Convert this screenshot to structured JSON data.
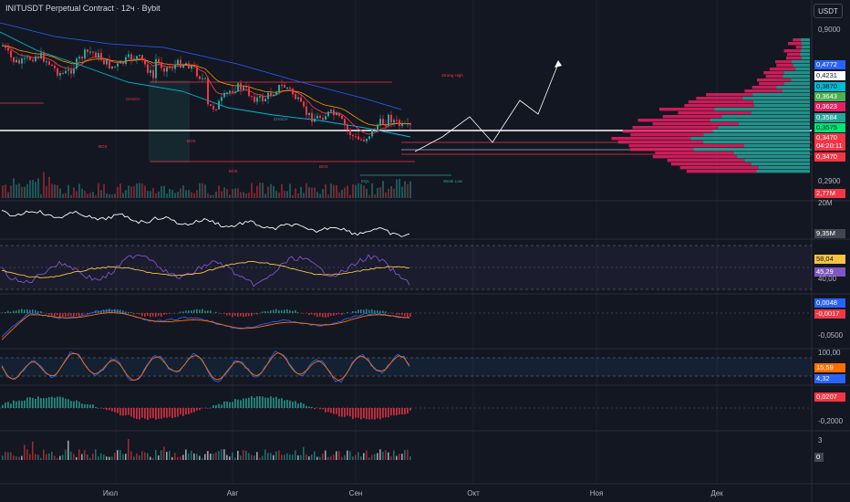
{
  "header": {
    "title": "INITUSDT Perpetual Contract · 12ч · Bybit",
    "currency_button": "USDT"
  },
  "price_axis": {
    "top": "0,9000",
    "bottom": "0,2900"
  },
  "price_badges": [
    {
      "text": "0,4772",
      "bg": "#2962ff",
      "fg": "#ffffff"
    },
    {
      "text": "0,4231",
      "bg": "#ffffff",
      "fg": "#131722"
    },
    {
      "text": "0,3870",
      "bg": "#00bcd4",
      "fg": "#131722"
    },
    {
      "text": "0,3643",
      "bg": "#4caf50",
      "fg": "#ffffff"
    },
    {
      "text": "0,3623",
      "bg": "#e91e63",
      "fg": "#ffffff"
    },
    {
      "text": "0,3584",
      "bg": "#26a69a",
      "fg": "#ffffff"
    },
    {
      "text": "0,3575",
      "bg": "#00e676",
      "fg": "#131722"
    },
    {
      "text": "0,3470",
      "bg": "#f23645",
      "fg": "#ffffff"
    },
    {
      "text": "04:20:11",
      "bg": "#f23645",
      "fg": "#ffffff"
    },
    {
      "text": "0,3470",
      "bg": "#f23645",
      "fg": "#ffffff"
    }
  ],
  "volume": {
    "badge": "2,77M",
    "scale": "20M"
  },
  "indicator_a": {
    "badge": "9,35M"
  },
  "rsi": {
    "badge1": "58,04",
    "badge2": "45,29",
    "level": "40,00"
  },
  "macd": {
    "badge1": "0,0048",
    "badge2": "-0,0017",
    "level": "-0,0500"
  },
  "stoch": {
    "top": "100,00",
    "badge1": "15,59",
    "badge2": "4,32"
  },
  "histogram": {
    "badge": "0,0207",
    "level": "-0,2000"
  },
  "bottom_ind": {
    "top": "3",
    "badge": "0"
  },
  "time_axis": [
    "Июл",
    "Авг",
    "Сен",
    "Окт",
    "Ноя",
    "Дек"
  ],
  "annotations": {
    "bos": "BOS",
    "choch": "CHoCH",
    "strong_high": "Strong High",
    "weak_low": "Weak Low",
    "eql": "EQL"
  },
  "colors": {
    "up": "#26a69a",
    "down": "#f23645",
    "bg": "#131722",
    "grid": "#1e222d",
    "profile_red": "#e91e63",
    "profile_teal": "#26a69a"
  }
}
